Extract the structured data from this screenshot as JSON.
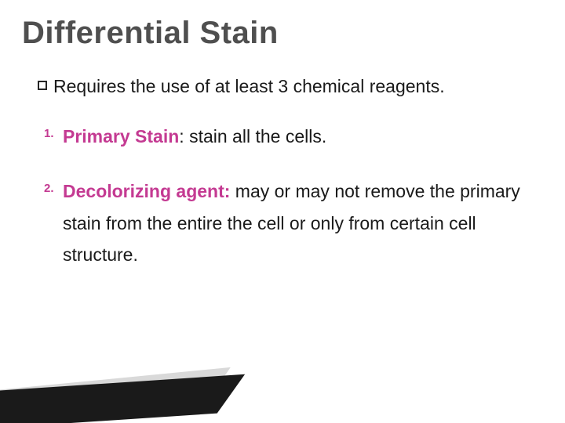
{
  "title": "Differential Stain",
  "intro": "Requires the use of at least 3 chemical reagents.",
  "items": [
    {
      "num": "1.",
      "label": "Primary Stain",
      "sep": ": ",
      "rest": "stain all the cells."
    },
    {
      "num": "2.",
      "label": "Decolorizing agent:",
      "sep": " ",
      "rest": "may or may not remove the primary stain from the entire the cell or only from certain cell structure."
    }
  ],
  "colors": {
    "title": "#4f4f4f",
    "accent": "#c43a92",
    "text": "#1a1a1a",
    "wedge_dark": "#1a1a1a",
    "wedge_light": "#d9d9d9",
    "background": "#ffffff"
  },
  "fonts": {
    "title_size_pt": 30,
    "body_size_pt": 17,
    "num_size_pt": 11
  }
}
